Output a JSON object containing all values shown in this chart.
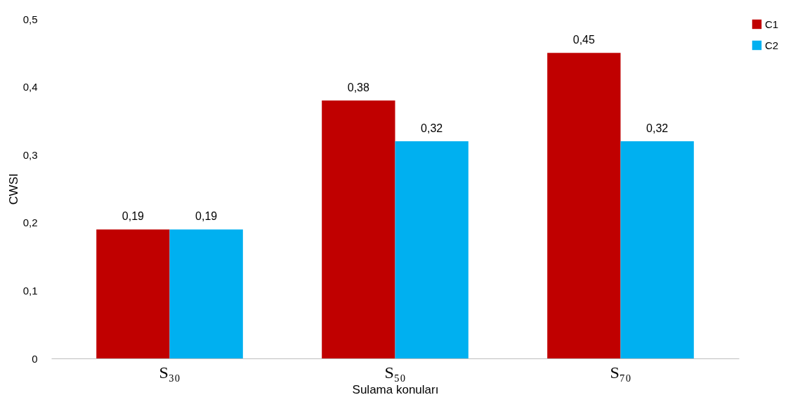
{
  "chart_data": {
    "type": "bar",
    "xlabel": "Sulama konuları",
    "ylabel": "CWSI",
    "categories": [
      "S₃₀",
      "S₅₀",
      "S₇₀"
    ],
    "series": [
      {
        "name": "C1",
        "color": "#c00000",
        "values": [
          0.19,
          0.38,
          0.45
        ],
        "value_labels": [
          "0,19",
          "0,38",
          "0,45"
        ]
      },
      {
        "name": "C2",
        "color": "#00b0f0",
        "values": [
          0.19,
          0.32,
          0.32
        ],
        "value_labels": [
          "0,19",
          "0,32",
          "0,32"
        ]
      }
    ],
    "ylim": [
      0,
      0.5
    ],
    "yticks": [
      0,
      {
        "value": 0.1,
        "label": "0,1"
      },
      {
        "value": 0.2,
        "label": "0,2"
      },
      {
        "value": 0.3,
        "label": "0,3"
      },
      {
        "value": 0.4,
        "label": "0,4"
      },
      {
        "value": 0.5,
        "label": "0,5"
      }
    ],
    "grid": false,
    "legend": "right"
  }
}
